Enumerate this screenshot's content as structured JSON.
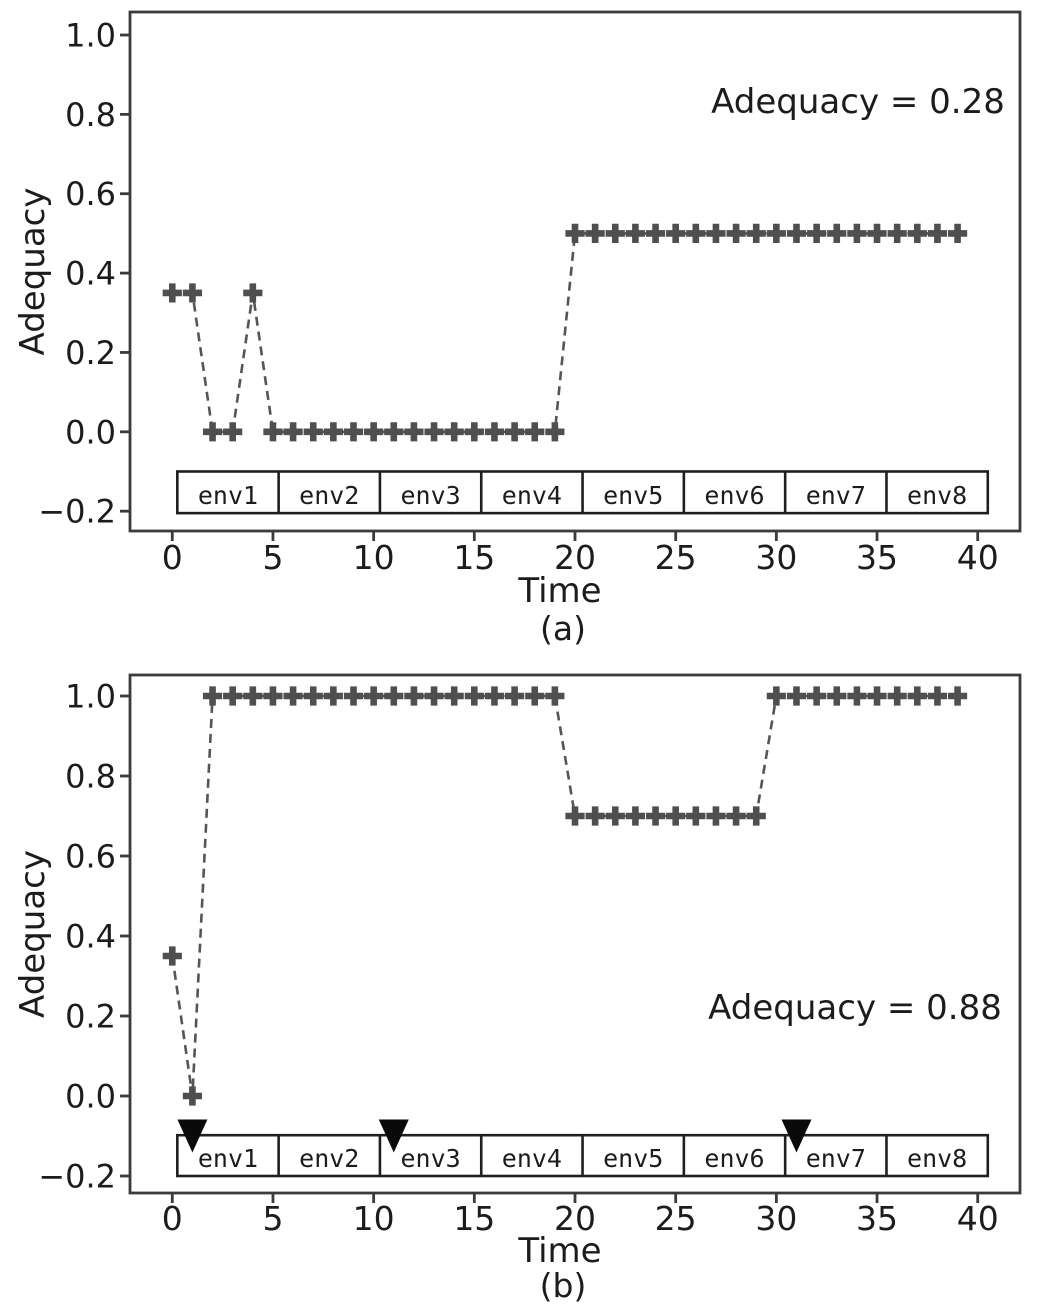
{
  "colors": {
    "background": "#ffffff",
    "marker": "#4f4f4f",
    "line": "#555555",
    "spine": "#3b3b3b",
    "tick": "#3b3b3b",
    "text": "#1c1c1c",
    "env_box_border": "#1f1f1f",
    "env_box_fill": "#ffffff",
    "triangle": "#0a0a0a"
  },
  "chart_data": [
    {
      "type": "line",
      "caption": "(a)",
      "xlabel": "Time",
      "ylabel": "Adequacy",
      "annotation": "Adequacy = 0.28",
      "marker": "plus",
      "linestyle": "dashed",
      "grid": false,
      "legend": null,
      "xlim": [
        -2.1,
        42.1
      ],
      "ylim": [
        -0.25,
        1.058
      ],
      "x": [
        0,
        1,
        2,
        3,
        4,
        5,
        6,
        7,
        8,
        9,
        10,
        11,
        12,
        13,
        14,
        15,
        16,
        17,
        18,
        19,
        20,
        21,
        22,
        23,
        24,
        25,
        26,
        27,
        28,
        29,
        30,
        31,
        32,
        33,
        34,
        35,
        36,
        37,
        38,
        39
      ],
      "y": [
        0.35,
        0.35,
        0.0,
        0.0,
        0.35,
        0.0,
        0.0,
        0.0,
        0.0,
        0.0,
        0.0,
        0.0,
        0.0,
        0.0,
        0.0,
        0.0,
        0.0,
        0.0,
        0.0,
        0.0,
        0.5,
        0.5,
        0.5,
        0.5,
        0.5,
        0.5,
        0.5,
        0.5,
        0.5,
        0.5,
        0.5,
        0.5,
        0.5,
        0.5,
        0.5,
        0.5,
        0.5,
        0.5,
        0.5,
        0.5
      ],
      "x_tick_vals": [
        0,
        5,
        10,
        15,
        20,
        25,
        30,
        35,
        40
      ],
      "x_tick_labels": [
        "0",
        "5",
        "10",
        "15",
        "20",
        "25",
        "30",
        "35",
        "40"
      ],
      "y_tick_vals": [
        1.0,
        0.8,
        0.6,
        0.4,
        0.2,
        0.0,
        -0.2
      ],
      "y_tick_labels": [
        "1.0",
        "0.8",
        "0.6",
        "0.4",
        "0.2",
        "0.0",
        "−0.2"
      ],
      "env_band": {
        "labels": [
          "env1",
          "env2",
          "env3",
          "env4",
          "env5",
          "env6",
          "env7",
          "env8"
        ],
        "x_start": 0.25,
        "x_end": 40.5,
        "y_top": -0.1,
        "y_bottom": -0.205
      },
      "event_triangles": {
        "x": [],
        "y": -0.1
      }
    },
    {
      "type": "line",
      "caption": "(b)",
      "xlabel": "Time",
      "ylabel": "Adequacy",
      "annotation": "Adequacy = 0.88",
      "marker": "plus",
      "linestyle": "dashed",
      "grid": false,
      "legend": null,
      "xlim": [
        -2.1,
        42.1
      ],
      "ylim": [
        -0.2425,
        1.0525
      ],
      "x": [
        0,
        1,
        2,
        3,
        4,
        5,
        6,
        7,
        8,
        9,
        10,
        11,
        12,
        13,
        14,
        15,
        16,
        17,
        18,
        19,
        20,
        21,
        22,
        23,
        24,
        25,
        26,
        27,
        28,
        29,
        30,
        31,
        32,
        33,
        34,
        35,
        36,
        37,
        38,
        39
      ],
      "y": [
        0.35,
        0.0,
        1.0,
        1.0,
        1.0,
        1.0,
        1.0,
        1.0,
        1.0,
        1.0,
        1.0,
        1.0,
        1.0,
        1.0,
        1.0,
        1.0,
        1.0,
        1.0,
        1.0,
        1.0,
        0.7,
        0.7,
        0.7,
        0.7,
        0.7,
        0.7,
        0.7,
        0.7,
        0.7,
        0.7,
        1.0,
        1.0,
        1.0,
        1.0,
        1.0,
        1.0,
        1.0,
        1.0,
        1.0,
        1.0
      ],
      "x_tick_vals": [
        0,
        5,
        10,
        15,
        20,
        25,
        30,
        35,
        40
      ],
      "x_tick_labels": [
        "0",
        "5",
        "10",
        "15",
        "20",
        "25",
        "30",
        "35",
        "40"
      ],
      "y_tick_vals": [
        1.0,
        0.8,
        0.6,
        0.4,
        0.2,
        0.0,
        -0.2
      ],
      "y_tick_labels": [
        "1.0",
        "0.8",
        "0.6",
        "0.4",
        "0.2",
        "0.0",
        "−0.2"
      ],
      "env_band": {
        "labels": [
          "env1",
          "env2",
          "env3",
          "env4",
          "env5",
          "env6",
          "env7",
          "env8"
        ],
        "x_start": 0.25,
        "x_end": 40.5,
        "y_top": -0.098,
        "y_bottom": -0.2
      },
      "event_triangles": {
        "x": [
          1,
          11,
          31
        ],
        "y": -0.1
      }
    }
  ]
}
